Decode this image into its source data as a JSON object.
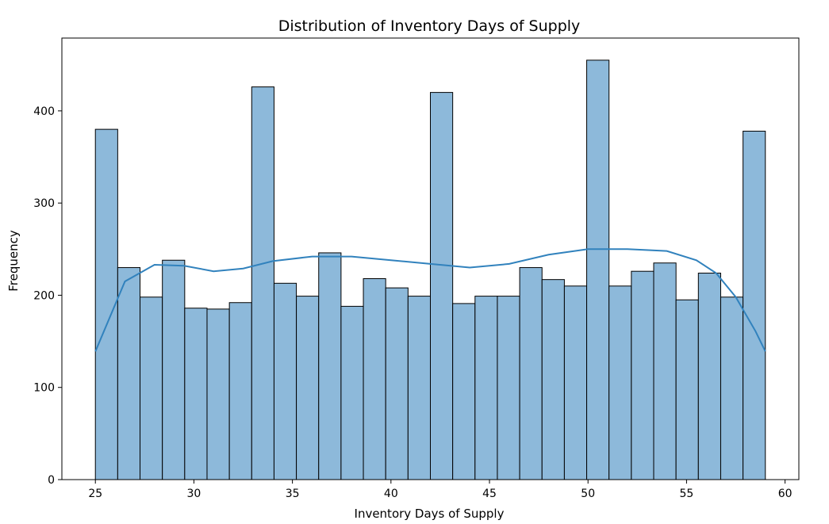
{
  "chart_data": {
    "type": "bar",
    "title": "Distribution of Inventory Days of Supply",
    "xlabel": "Inventory Days of Supply",
    "ylabel": "Frequency",
    "xlim": [
      23.3,
      60.7
    ],
    "ylim": [
      0,
      479
    ],
    "x_ticks": [
      25,
      30,
      35,
      40,
      45,
      50,
      55,
      60
    ],
    "y_ticks": [
      0,
      100,
      200,
      300,
      400
    ],
    "bin_start": 25,
    "bin_end": 59,
    "bins": 30,
    "values": [
      380,
      230,
      198,
      238,
      186,
      185,
      192,
      426,
      213,
      199,
      246,
      188,
      218,
      208,
      199,
      420,
      191,
      199,
      199,
      230,
      217,
      210,
      455,
      210,
      226,
      235,
      195,
      224,
      198,
      378
    ],
    "kde": {
      "x": [
        25,
        26.5,
        28,
        29.5,
        31,
        32.5,
        34,
        36,
        38,
        40,
        42,
        44,
        46,
        48,
        50,
        52,
        54,
        55.5,
        56.5,
        57.5,
        58.5,
        59
      ],
      "y": [
        139,
        215,
        233,
        232,
        226,
        229,
        237,
        242,
        242,
        238,
        234,
        230,
        234,
        244,
        250,
        250,
        248,
        238,
        224,
        198,
        161,
        139
      ]
    },
    "grid": false,
    "colors": {
      "bar_fill": "#8db9da",
      "bar_edge": "#000000",
      "kde_line": "#3182bd"
    }
  }
}
